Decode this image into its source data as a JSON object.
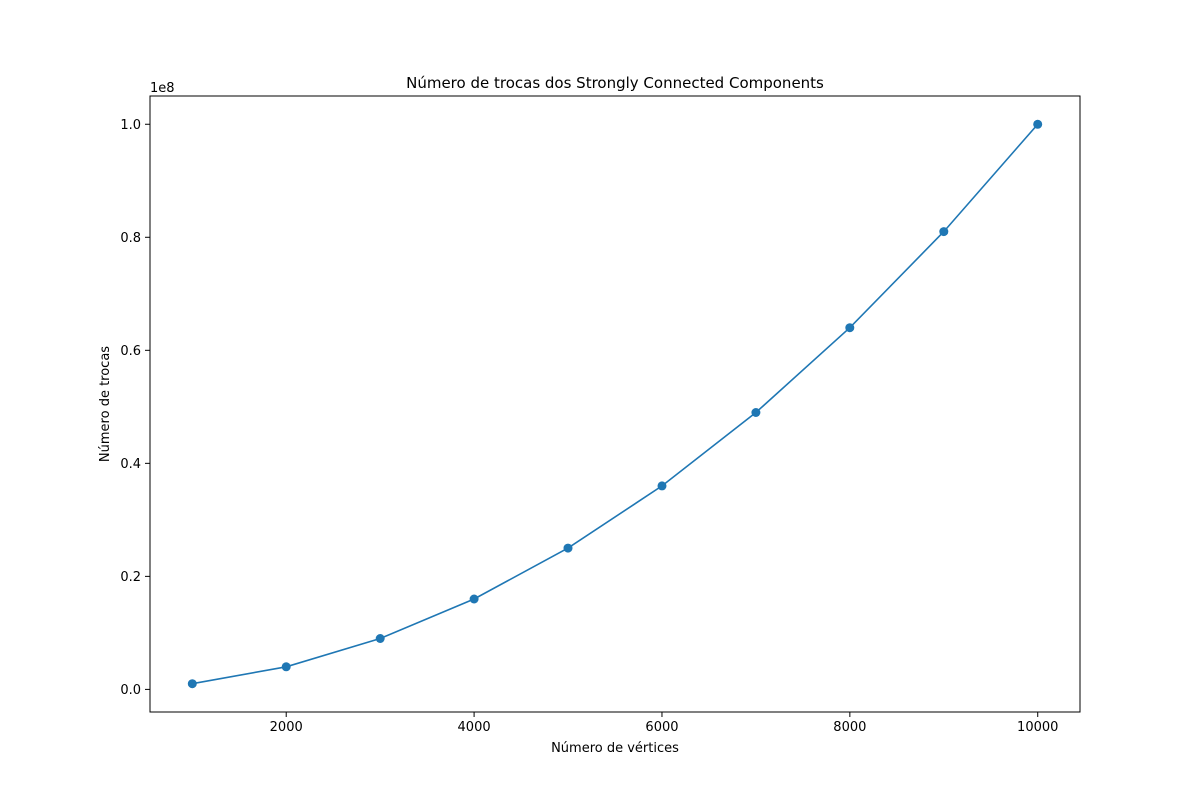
{
  "chart_data": {
    "type": "line",
    "title": "Número de trocas dos Strongly Connected Components",
    "xlabel": "Número de vértices",
    "ylabel": "Número de trocas",
    "y_offset_label": "1e8",
    "xlim": [
      550,
      10450
    ],
    "ylim": [
      -0.04,
      1.05
    ],
    "x_ticks": [
      2000,
      4000,
      6000,
      8000,
      10000
    ],
    "x_tick_labels": [
      "2000",
      "4000",
      "6000",
      "8000",
      "10000"
    ],
    "y_ticks": [
      0.0,
      0.2,
      0.4,
      0.6,
      0.8,
      1.0
    ],
    "y_tick_labels": [
      "0.0",
      "0.2",
      "0.4",
      "0.6",
      "0.8",
      "1.0"
    ],
    "grid": false,
    "series": [
      {
        "color": "#1f77b4",
        "marker": "circle",
        "x": [
          1000,
          2000,
          3000,
          4000,
          5000,
          6000,
          7000,
          8000,
          9000,
          10000
        ],
        "y": [
          0.01,
          0.04,
          0.09,
          0.16,
          0.25,
          0.36,
          0.49,
          0.64,
          0.81,
          1.0
        ]
      }
    ]
  }
}
